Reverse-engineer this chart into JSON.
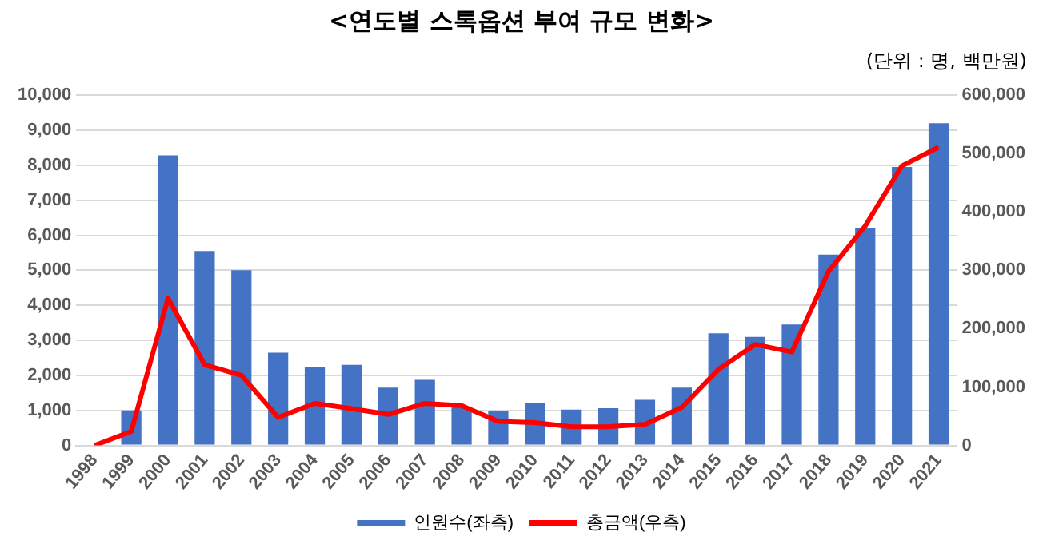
{
  "chart_data": {
    "type": "bar",
    "title": "<연도별 스톡옵션 부여 규모 변화>",
    "annotations": [
      "(단위 : 명, 백만원)"
    ],
    "categories": [
      "1998",
      "1999",
      "2000",
      "2001",
      "2002",
      "2003",
      "2004",
      "2005",
      "2006",
      "2007",
      "2008",
      "2009",
      "2010",
      "2011",
      "2012",
      "2013",
      "2014",
      "2015",
      "2016",
      "2017",
      "2018",
      "2019",
      "2020",
      "2021"
    ],
    "series": [
      {
        "name": "인원수(좌측)",
        "color": "#4472c4",
        "values": [
          null,
          1000,
          8280,
          5550,
          5000,
          2650,
          2230,
          2300,
          1650,
          1870,
          1100,
          980,
          1200,
          1020,
          1060,
          1300,
          1650,
          3200,
          3100,
          3450,
          5450,
          6200,
          7950,
          9200
        ]
      },
      {
        "name": "총금액(우측)",
        "type": "line",
        "axis": "y2",
        "color": "#ff0000",
        "values": [
          0,
          24000,
          252000,
          138000,
          120000,
          48000,
          72000,
          63000,
          53000,
          72000,
          68000,
          41000,
          39000,
          32000,
          32000,
          36000,
          65000,
          130000,
          173000,
          160000,
          298000,
          376000,
          479000,
          511000
        ]
      }
    ],
    "ylim": [
      0,
      10000
    ],
    "yticks": [
      0,
      {
        "value": 1000,
        "label": "1,000"
      },
      {
        "value": 2000,
        "label": "2,000"
      },
      {
        "value": 3000,
        "label": "3,000"
      },
      {
        "value": 4000,
        "label": "4,000"
      },
      {
        "value": 5000,
        "label": "5,000"
      },
      {
        "value": 6000,
        "label": "6,000"
      },
      {
        "value": 7000,
        "label": "7,000"
      },
      {
        "value": 8000,
        "label": "8,000"
      },
      {
        "value": 9000,
        "label": "9,000"
      },
      {
        "value": 10000,
        "label": "10,000"
      }
    ],
    "y2lim": [
      0,
      600000
    ],
    "y2ticks": [
      0,
      {
        "value": 100000,
        "label": "100,000"
      },
      {
        "value": 200000,
        "label": "200,000"
      },
      {
        "value": 300000,
        "label": "300,000"
      },
      {
        "value": 400000,
        "label": "400,000"
      },
      {
        "value": 500000,
        "label": "500,000"
      },
      {
        "value": 600000,
        "label": "600,000"
      }
    ],
    "grid": "y",
    "legend": "bottom",
    "marker": "none",
    "line_style": "solid"
  }
}
